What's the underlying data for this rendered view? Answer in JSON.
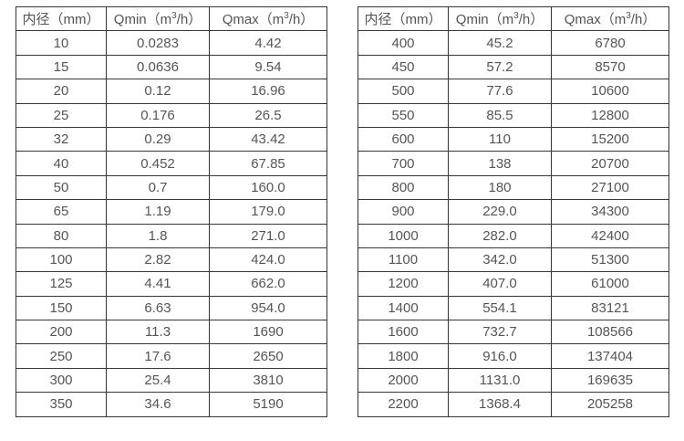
{
  "page": {
    "background": "#ffffff",
    "border_color": "#363636",
    "text_color": "#555555"
  },
  "tables": [
    {
      "name": "small-diameter-flow-table",
      "headers": {
        "diameter": "内径（mm）",
        "qmin": {
          "prefix": "Qmin（m",
          "sup": "3",
          "suffix": "/h）"
        },
        "qmax": {
          "prefix": "Qmax（m",
          "sup": "3",
          "suffix": "/h）"
        }
      },
      "rows": [
        [
          "10",
          "0.0283",
          "4.42"
        ],
        [
          "15",
          "0.0636",
          "9.54"
        ],
        [
          "20",
          "0.12",
          "16.96"
        ],
        [
          "25",
          "0.176",
          "26.5"
        ],
        [
          "32",
          "0.29",
          "43.42"
        ],
        [
          "40",
          "0.452",
          "67.85"
        ],
        [
          "50",
          "0.7",
          "160.0"
        ],
        [
          "65",
          "1.19",
          "179.0"
        ],
        [
          "80",
          "1.8",
          "271.0"
        ],
        [
          "100",
          "2.82",
          "424.0"
        ],
        [
          "125",
          "4.41",
          "662.0"
        ],
        [
          "150",
          "6.63",
          "954.0"
        ],
        [
          "200",
          "11.3",
          "1690"
        ],
        [
          "250",
          "17.6",
          "2650"
        ],
        [
          "300",
          "25.4",
          "3810"
        ],
        [
          "350",
          "34.6",
          "5190"
        ]
      ]
    },
    {
      "name": "large-diameter-flow-table",
      "headers": {
        "diameter": "内径（mm）",
        "qmin": {
          "prefix": "Qmin（m",
          "sup": "3",
          "suffix": "/h）"
        },
        "qmax": {
          "prefix": "Qmax（m",
          "sup": "3",
          "suffix": "/h）"
        }
      },
      "rows": [
        [
          "400",
          "45.2",
          "6780"
        ],
        [
          "450",
          "57.2",
          "8570"
        ],
        [
          "500",
          "77.6",
          "10600"
        ],
        [
          "550",
          "85.5",
          "12800"
        ],
        [
          "600",
          "110",
          "15200"
        ],
        [
          "700",
          "138",
          "20700"
        ],
        [
          "800",
          "180",
          "27100"
        ],
        [
          "900",
          "229.0",
          "34300"
        ],
        [
          "1000",
          "282.0",
          "42400"
        ],
        [
          "1100",
          "342.0",
          "51300"
        ],
        [
          "1200",
          "407.0",
          "61000"
        ],
        [
          "1400",
          "554.1",
          "83121"
        ],
        [
          "1600",
          "732.7",
          "108566"
        ],
        [
          "1800",
          "916.0",
          "137404"
        ],
        [
          "2000",
          "1131.0",
          "169635"
        ],
        [
          "2200",
          "1368.4",
          "205258"
        ]
      ]
    }
  ]
}
